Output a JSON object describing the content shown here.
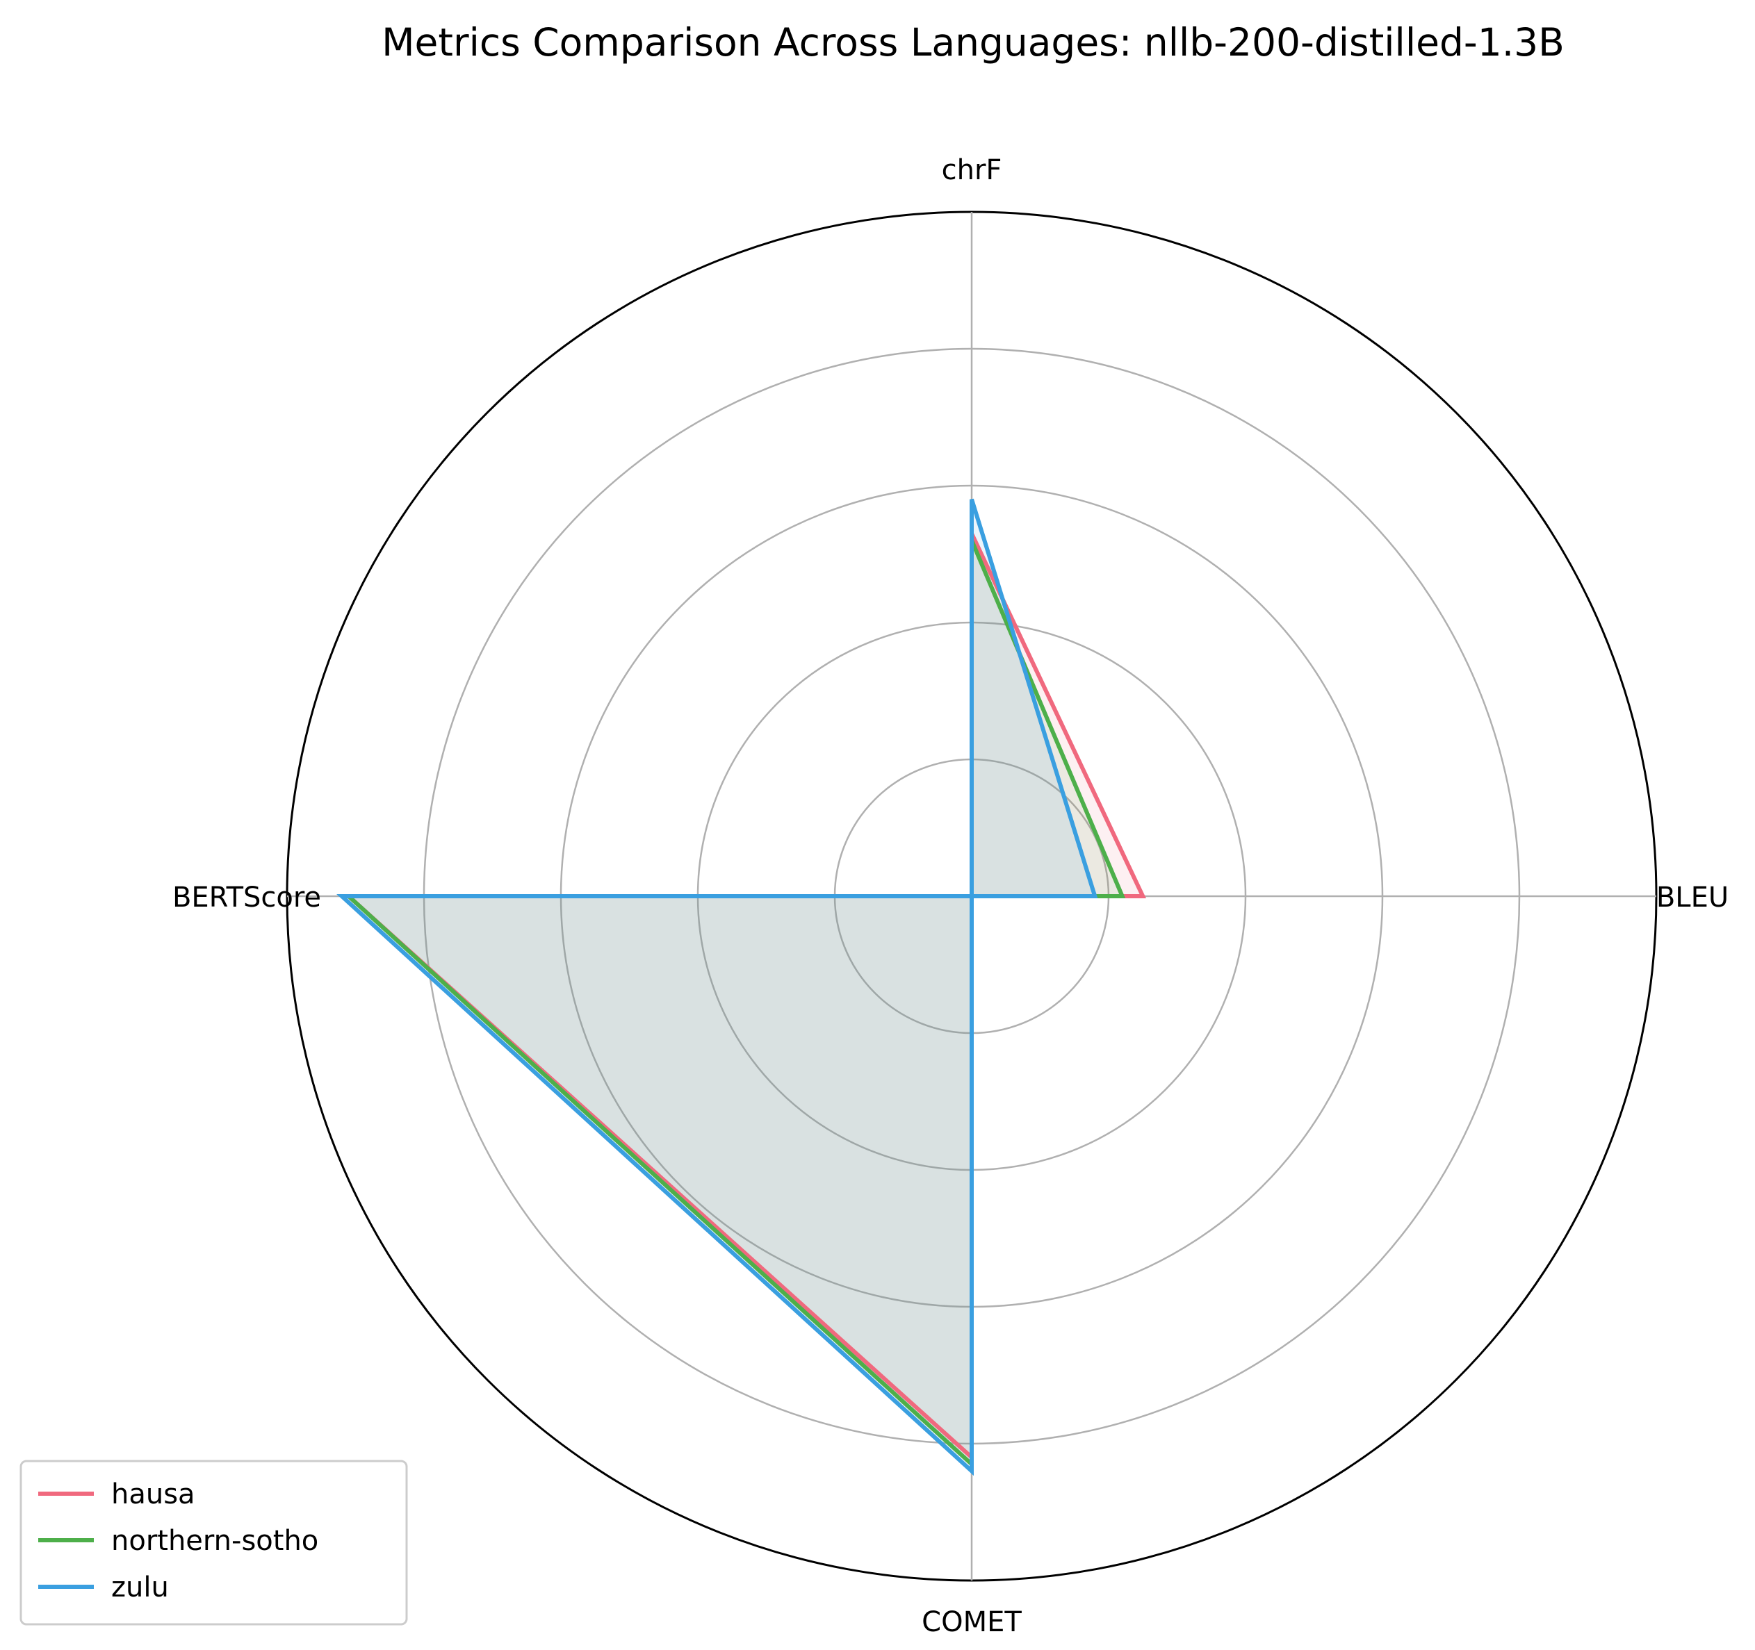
{
  "chart_data": {
    "type": "radar",
    "title": "Metrics Comparison Across Languages: nllb-200-distilled-1.3B",
    "axes": [
      "BLEU",
      "chrF",
      "COMET",
      "BERTScore"
    ],
    "rlim": [
      0,
      1
    ],
    "rings": [
      0.2,
      0.4,
      0.6,
      0.8,
      1.0
    ],
    "grid": true,
    "legend_position": "bottom-left",
    "series": [
      {
        "name": "hausa",
        "color": "#f0697e",
        "values": [
          0.25,
          0.53,
          0.82,
          0.91
        ]
      },
      {
        "name": "northern-sotho",
        "color": "#4daf4a",
        "values": [
          0.22,
          0.52,
          0.83,
          0.91
        ]
      },
      {
        "name": "zulu",
        "color": "#3a9fe0",
        "values": [
          0.18,
          0.58,
          0.84,
          0.92
        ]
      }
    ]
  }
}
